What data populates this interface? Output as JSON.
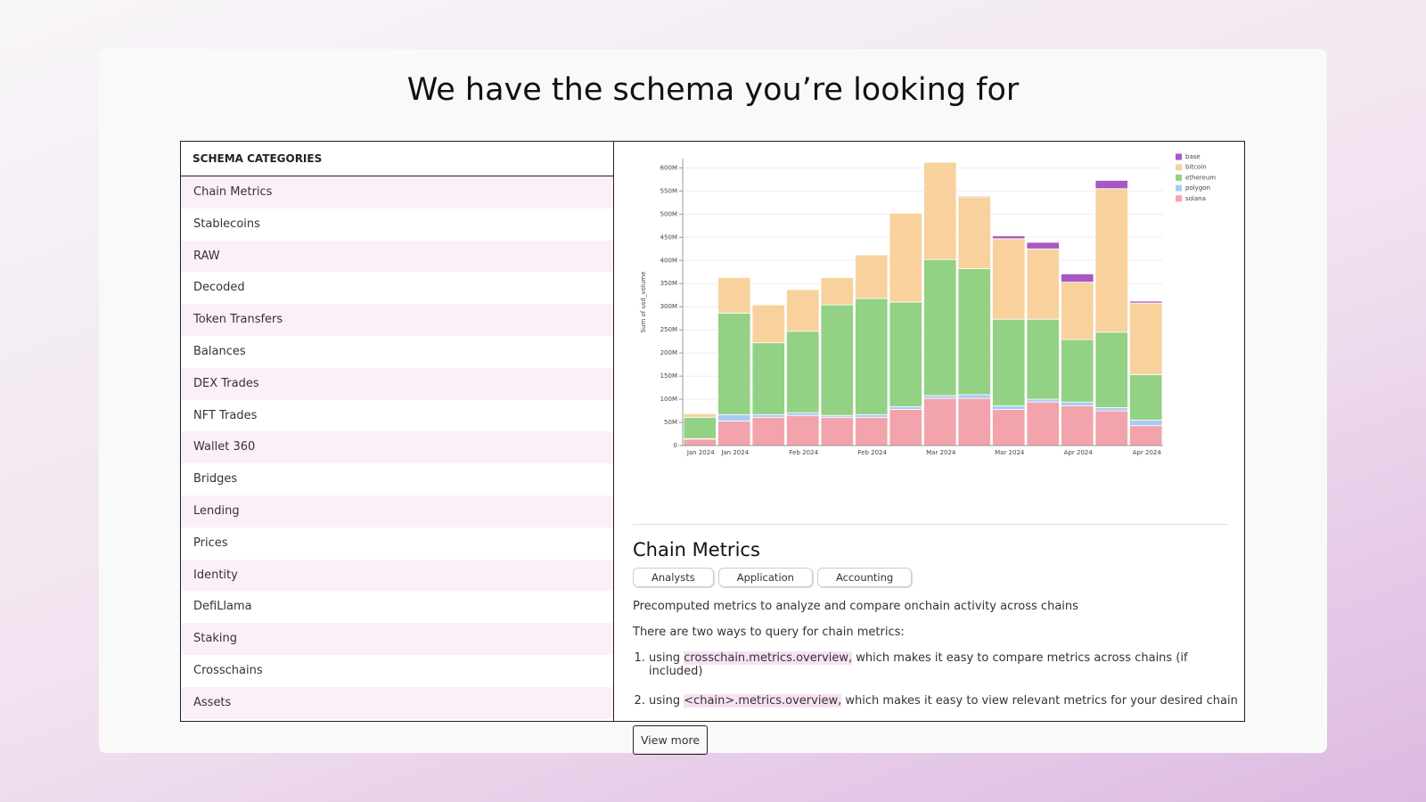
{
  "header": {
    "title": "We have the schema you’re looking for"
  },
  "sidebar": {
    "heading": "SCHEMA CATEGORIES",
    "items": [
      "Chain Metrics",
      "Stablecoins",
      "RAW",
      "Decoded",
      "Token Transfers",
      "Balances",
      "DEX Trades",
      "NFT Trades",
      "Wallet 360",
      "Bridges",
      "Lending",
      "Prices",
      "Identity",
      "DefiLlama",
      "Staking",
      "Crosschains",
      "Assets"
    ]
  },
  "chart_data": {
    "type": "stacked_bar",
    "y_label": "Sum of usd_volume",
    "categories": [
      "Jan 2024",
      "Jan 2024",
      null,
      "Feb 2024",
      null,
      "Feb 2024",
      null,
      "Mar 2024",
      null,
      "Mar 2024",
      null,
      "Apr 2024",
      null,
      "Apr 2024"
    ],
    "series": [
      {
        "name": "solana",
        "color": "#f2a3ab",
        "values": [
          14,
          53,
          61,
          65,
          61,
          61,
          78,
          102,
          102,
          78,
          94,
          86,
          75,
          43
        ]
      },
      {
        "name": "polygon",
        "color": "#a9cbf2",
        "values": [
          1,
          14,
          6,
          6,
          4,
          6,
          6,
          6,
          8,
          8,
          6,
          8,
          7,
          12
        ]
      },
      {
        "name": "ethereum",
        "color": "#93d184",
        "values": [
          46,
          219,
          155,
          176,
          239,
          251,
          226,
          294,
          272,
          187,
          173,
          135,
          163,
          98
        ]
      },
      {
        "name": "bitcoin",
        "color": "#f8d19d",
        "values": [
          8,
          77,
          82,
          90,
          59,
          94,
          192,
          210,
          155,
          174,
          152,
          124,
          310,
          155
        ]
      },
      {
        "name": "base",
        "color": "#a957c2",
        "values": [
          0,
          0,
          0,
          0,
          0,
          0,
          0,
          0,
          2,
          6,
          14,
          18,
          18,
          4
        ]
      }
    ],
    "ylim": [
      0,
      620
    ],
    "yticks": [
      {
        "value": 0,
        "label": "0"
      },
      {
        "value": 50,
        "label": "50M"
      },
      {
        "value": 100,
        "label": "100M"
      },
      {
        "value": 150,
        "label": "150M"
      },
      {
        "value": 200,
        "label": "200M"
      },
      {
        "value": 250,
        "label": "250M"
      },
      {
        "value": 300,
        "label": "300M"
      },
      {
        "value": 350,
        "label": "350M"
      },
      {
        "value": 400,
        "label": "400M"
      },
      {
        "value": 450,
        "label": "450M"
      },
      {
        "value": 500,
        "label": "500M"
      },
      {
        "value": 550,
        "label": "550M"
      },
      {
        "value": 600,
        "label": "600M"
      }
    ],
    "grid": true
  },
  "details": {
    "title": "Chain Metrics",
    "tags": [
      "Analysts",
      "Application",
      "Accounting"
    ],
    "description": "Precomputed metrics to analyze and compare onchain activity across chains",
    "intro": "There are two ways to query for chain metrics:",
    "list": [
      {
        "before": "using",
        "code": "crosschain.metrics.overview,",
        "after": "which makes it easy to compare metrics across chains (if included)"
      },
      {
        "before": "using",
        "code": "<chain>.metrics.overview,",
        "after": "which makes it easy to view relevant metrics for your desired chain"
      }
    ],
    "button": "View more"
  }
}
